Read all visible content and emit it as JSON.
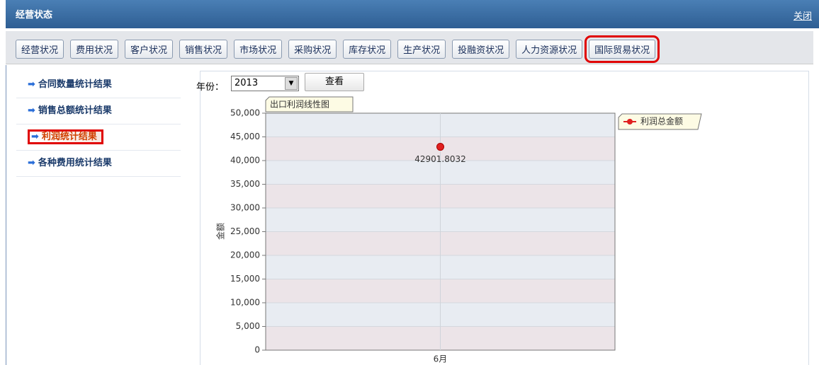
{
  "header": {
    "title": "经营状态",
    "close": "关闭"
  },
  "tabs": [
    "经营状况",
    "费用状况",
    "客户状况",
    "销售状况",
    "市场状况",
    "采购状况",
    "库存状况",
    "生产状况",
    "投融资状况",
    "人力资源状况",
    "国际贸易状况"
  ],
  "sidebar": {
    "items": [
      "合同数量统计结果",
      "销售总额统计结果",
      "利润统计结果",
      "各种费用统计结果"
    ]
  },
  "filter": {
    "label": "年份：",
    "year": "2013",
    "button": "查看"
  },
  "chart_data": {
    "type": "line",
    "title": "出口利润线性图",
    "y_label": "金额",
    "categories": [
      "6月"
    ],
    "series": [
      {
        "name": "利润总金额",
        "color": "#e02020",
        "values": [
          42901.8032
        ]
      }
    ],
    "ylim": [
      0,
      50000
    ],
    "yticks": [
      0,
      {
        "value": 5000,
        "label": "5,000"
      },
      {
        "value": 10000,
        "label": "10,000"
      },
      {
        "value": 15000,
        "label": "15,000"
      },
      {
        "value": 20000,
        "label": "20,000"
      },
      {
        "value": 25000,
        "label": "25,000"
      },
      {
        "value": 30000,
        "label": "30,000"
      },
      {
        "value": 35000,
        "label": "35,000"
      },
      {
        "value": 40000,
        "label": "40,000"
      },
      {
        "value": 45000,
        "label": "45,000"
      },
      {
        "value": 50000,
        "label": "50,000"
      }
    ],
    "grid": true
  }
}
